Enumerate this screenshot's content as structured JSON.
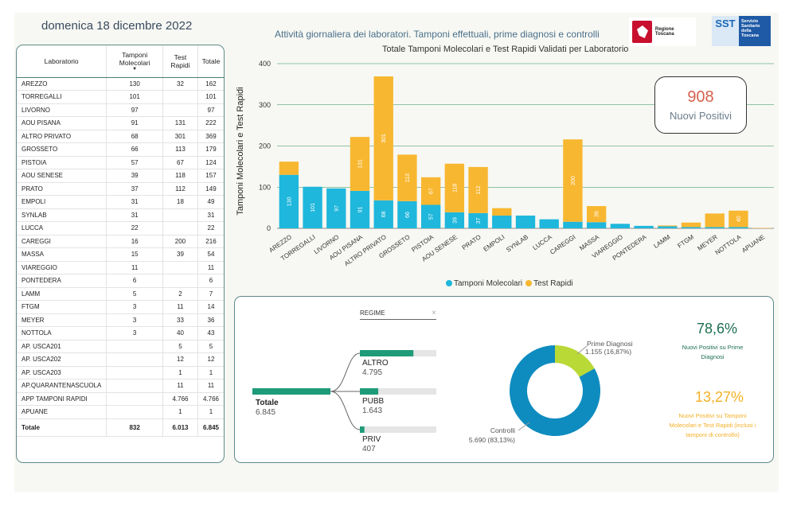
{
  "date": "domenica 18 dicembre 2022",
  "headline": "Attività giornaliera dei laboratori. Tamponi effettuali, prime diagnosi e controlli",
  "logo_toscana": "Regione Toscana",
  "logo_sst": {
    "short": "SST",
    "long": "Servizio Sanitario della Toscana"
  },
  "table": {
    "headers": [
      "Laboratorio",
      "Tamponi Molecolari",
      "Test Rapidi",
      "Totale"
    ],
    "rows": [
      [
        "AREZZO",
        "130",
        "32",
        "162"
      ],
      [
        "TORREGALLI",
        "101",
        "",
        "101"
      ],
      [
        "LIVORNO",
        "97",
        "",
        "97"
      ],
      [
        "AOU PISANA",
        "91",
        "131",
        "222"
      ],
      [
        "ALTRO PRIVATO",
        "68",
        "301",
        "369"
      ],
      [
        "GROSSETO",
        "66",
        "113",
        "179"
      ],
      [
        "PISTOIA",
        "57",
        "67",
        "124"
      ],
      [
        "AOU SENESE",
        "39",
        "118",
        "157"
      ],
      [
        "PRATO",
        "37",
        "112",
        "149"
      ],
      [
        "EMPOLI",
        "31",
        "18",
        "49"
      ],
      [
        "SYNLAB",
        "31",
        "",
        "31"
      ],
      [
        "LUCCA",
        "22",
        "",
        "22"
      ],
      [
        "CAREGGI",
        "16",
        "200",
        "216"
      ],
      [
        "MASSA",
        "15",
        "39",
        "54"
      ],
      [
        "VIAREGGIO",
        "11",
        "",
        "11"
      ],
      [
        "PONTEDERA",
        "6",
        "",
        "6"
      ],
      [
        "LAMM",
        "5",
        "2",
        "7"
      ],
      [
        "FTGM",
        "3",
        "11",
        "14"
      ],
      [
        "MEYER",
        "3",
        "33",
        "36"
      ],
      [
        "NOTTOLA",
        "3",
        "40",
        "43"
      ],
      [
        "AP. USCA201",
        "",
        "5",
        "5"
      ],
      [
        "AP. USCA202",
        "",
        "12",
        "12"
      ],
      [
        "AP. USCA203",
        "",
        "1",
        "1"
      ],
      [
        "AP.QUARANTENASCUOLA",
        "",
        "11",
        "11"
      ],
      [
        "APP TAMPONI RAPIDI",
        "",
        "4.766",
        "4.766"
      ],
      [
        "APUANE",
        "",
        "1",
        "1"
      ]
    ],
    "total": [
      "Totale",
      "832",
      "6.013",
      "6.845"
    ]
  },
  "chart_data": {
    "type": "bar",
    "title": "Totale Tamponi Molecolari e Test Rapidi Validati per Laboratorio",
    "ylabel": "Tamponi Molecolari e Test Rapidi",
    "ylim": [
      0,
      400
    ],
    "yticks": [
      "0",
      "100",
      "200",
      "300",
      "400"
    ],
    "categories": [
      "AREZZO",
      "TORREGALLI",
      "LIVORNO",
      "AOU PISANA",
      "ALTRO PRIVATO",
      "GROSSETO",
      "PISTOIA",
      "AOU SENESE",
      "PRATO",
      "EMPOLI",
      "SYNLAB",
      "LUCCA",
      "CAREGGI",
      "MASSA",
      "VIAREGGIO",
      "PONTEDERA",
      "LAMM",
      "FTGM",
      "MEYER",
      "NOTTOLA",
      "APUANE"
    ],
    "series": [
      {
        "name": "Tamponi Molecolari",
        "color": "#1fb7dc",
        "values": [
          130,
          101,
          97,
          91,
          68,
          66,
          57,
          39,
          37,
          31,
          31,
          22,
          16,
          15,
          11,
          6,
          5,
          3,
          3,
          3,
          0
        ]
      },
      {
        "name": "Test Rapidi",
        "color": "#f8b730",
        "values": [
          32,
          0,
          0,
          131,
          301,
          113,
          67,
          118,
          112,
          18,
          0,
          0,
          200,
          39,
          0,
          0,
          2,
          11,
          33,
          40,
          1
        ]
      }
    ],
    "legend": "bottom"
  },
  "kpi": {
    "value": "908",
    "label": "Nuovi Positivi"
  },
  "regime": {
    "label": "REGIME",
    "clear": "×",
    "total_label": "Totale",
    "total_value": "6.845",
    "branches": [
      {
        "name": "ALTRO",
        "value": "4.795",
        "fraction": 0.7005
      },
      {
        "name": "PUBB",
        "value": "1.643",
        "fraction": 0.24
      },
      {
        "name": "PRIV",
        "value": "407",
        "fraction": 0.0595
      }
    ]
  },
  "donut": {
    "slices": [
      {
        "label": "Prime Diagnosi",
        "value_text": "1.155 (16,87%)",
        "value": 1155,
        "color": "#b9d937"
      },
      {
        "label": "Controlli",
        "value_text": "5.690 (83,13%)",
        "value": 5690,
        "color": "#0e8cbf"
      }
    ]
  },
  "stats": [
    {
      "value": "78,6%",
      "label": "Nuovi Positivi su Prime Diagnosi"
    },
    {
      "value": "13,27%",
      "label": "Nuovi Positivi su Tamponi Molecolari e Test Rapidi (inclusi i tamponi di controllo)"
    }
  ]
}
